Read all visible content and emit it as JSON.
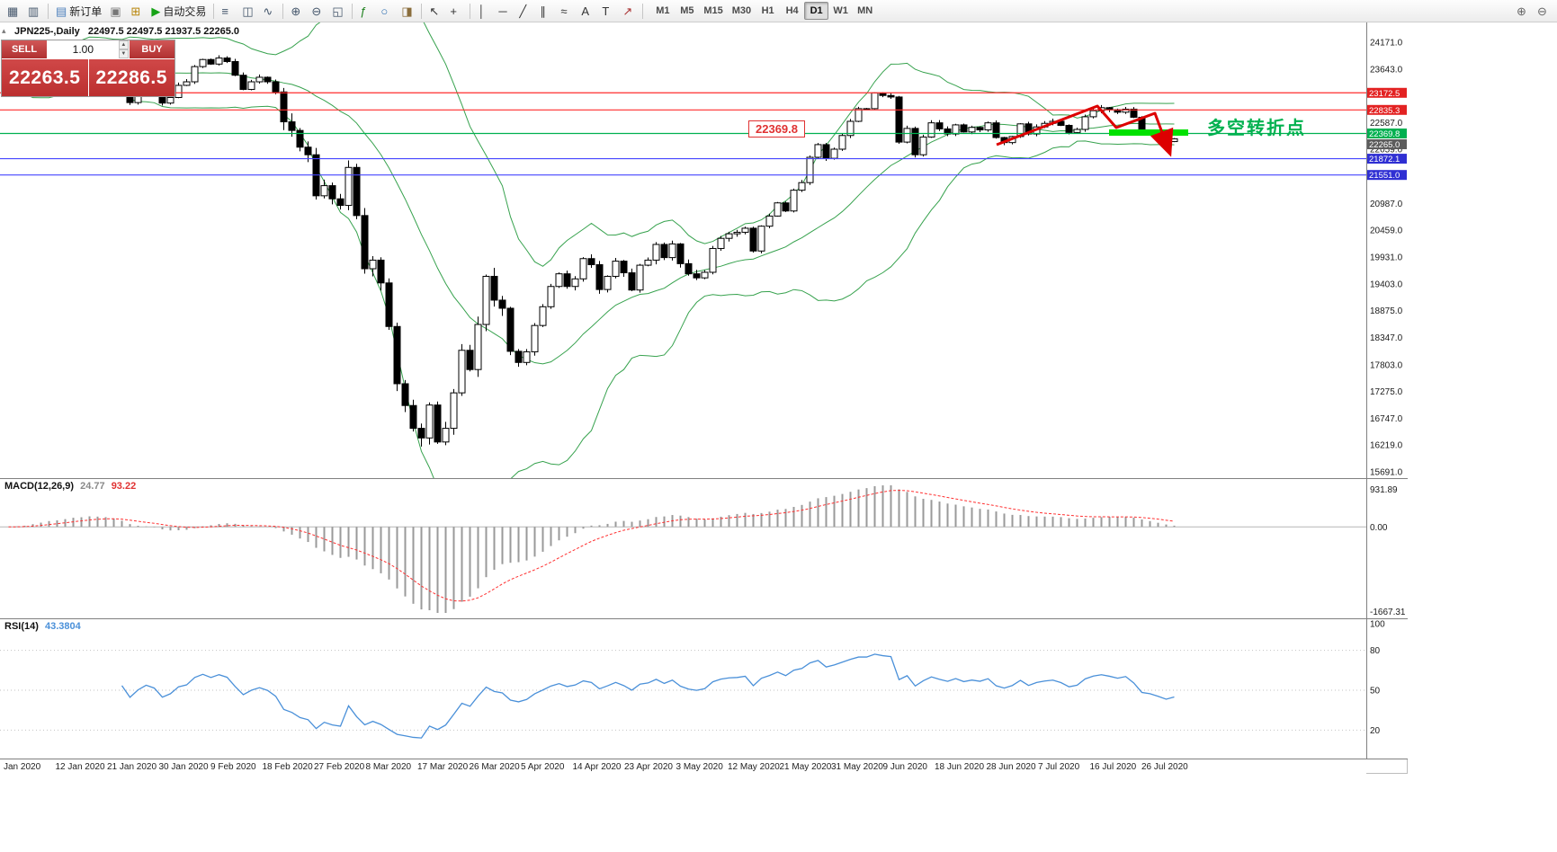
{
  "toolbar": {
    "buttons": [
      {
        "name": "new-chart",
        "glyph": "▦",
        "glyph_color": "#44566b"
      },
      {
        "name": "profiles",
        "glyph": "▥",
        "glyph_color": "#44566b"
      },
      {
        "name": "sep"
      },
      {
        "name": "new-order",
        "glyph": "▤",
        "glyph_color": "#4a7ebb",
        "label": "新订单"
      },
      {
        "name": "print",
        "glyph": "▣",
        "glyph_color": "#777777"
      },
      {
        "name": "market-watch",
        "glyph": "⊞",
        "glyph_color": "#b8860b"
      },
      {
        "name": "autotrading",
        "glyph": "▶",
        "glyph_color": "#17a317",
        "label": "自动交易"
      },
      {
        "name": "sep"
      },
      {
        "name": "bar-chart-mode",
        "glyph": "≡",
        "glyph_color": "#44566b"
      },
      {
        "name": "candlestick-mode",
        "glyph": "◫",
        "glyph_color": "#44566b"
      },
      {
        "name": "line-chart-mode",
        "glyph": "∿",
        "glyph_color": "#44566b"
      },
      {
        "name": "sep"
      },
      {
        "name": "zoom-in",
        "glyph": "⊕",
        "glyph_color": "#44566b"
      },
      {
        "name": "zoom-out",
        "glyph": "⊖",
        "glyph_color": "#44566b"
      },
      {
        "name": "tile-windows",
        "glyph": "◱",
        "glyph_color": "#44566b"
      },
      {
        "name": "sep"
      },
      {
        "name": "indicators",
        "glyph": "ƒ",
        "glyph_color": "#1a7f1a"
      },
      {
        "name": "periods",
        "glyph": "○",
        "glyph_color": "#2b6cb0"
      },
      {
        "name": "templates",
        "glyph": "◨",
        "glyph_color": "#8a6d3b"
      },
      {
        "name": "sep"
      },
      {
        "name": "cursor",
        "glyph": "↖",
        "glyph_color": "#333333"
      },
      {
        "name": "crosshair",
        "glyph": "+",
        "glyph_color": "#333333"
      },
      {
        "name": "sep"
      },
      {
        "name": "vertical-line",
        "glyph": "│",
        "glyph_color": "#333333"
      },
      {
        "name": "horizontal-line",
        "glyph": "─",
        "glyph_color": "#333333"
      },
      {
        "name": "trendline",
        "glyph": "╱",
        "glyph_color": "#333333"
      },
      {
        "name": "channel",
        "glyph": "∥",
        "glyph_color": "#333333"
      },
      {
        "name": "fibonacci",
        "glyph": "≈",
        "glyph_color": "#333333"
      },
      {
        "name": "text",
        "glyph": "A",
        "glyph_color": "#333333"
      },
      {
        "name": "text-label",
        "glyph": "T",
        "glyph_color": "#333333"
      },
      {
        "name": "arrows-tool",
        "glyph": "↗",
        "glyph_color": "#aa3333"
      },
      {
        "name": "sep"
      }
    ],
    "timeframes": [
      "M1",
      "M5",
      "M15",
      "M30",
      "H1",
      "H4",
      "D1",
      "W1",
      "MN"
    ],
    "active_timeframe": "D1",
    "right_buttons": [
      {
        "name": "magnify-increase",
        "glyph": "⊕",
        "glyph_color": "#666666"
      },
      {
        "name": "magnify-decrease",
        "glyph": "⊖",
        "glyph_color": "#666666"
      }
    ]
  },
  "chart": {
    "symbol_period": "JPN225-,Daily",
    "ohlc": "22497.5 22497.5 21937.5 22265.0"
  },
  "trade_panel": {
    "sell_label": "SELL",
    "buy_label": "BUY",
    "sell_price": "22263.5",
    "buy_price": "22286.5",
    "lots": "1.00"
  },
  "indicators": {
    "macd": {
      "name": "MACD(12,26,9)",
      "value_main": "24.77",
      "value_signal": "93.22",
      "axis": [
        "931.89",
        "0.00",
        "-1667.31"
      ]
    },
    "rsi": {
      "name": "RSI(14)",
      "value": "43.3804",
      "axis": [
        "100",
        "80",
        "50",
        "20"
      ]
    }
  },
  "annotations": {
    "level_label": "22369.8",
    "cn_note": "多空转折点"
  },
  "price_axis": {
    "labels": [
      "24171.0",
      "23643.0",
      "22587.0",
      "22059.0",
      "20987.0",
      "20459.0",
      "19931.0",
      "19403.0",
      "18875.0",
      "18347.0",
      "17803.0",
      "17275.0",
      "16747.0",
      "16219.0",
      "15691.0"
    ],
    "badges": [
      {
        "value": "23172.5",
        "color": "#e32222"
      },
      {
        "value": "22835.3",
        "color": "#e32222"
      },
      {
        "value": "22369.8",
        "color": "#00b050"
      },
      {
        "value": "22265.0",
        "color": "#5c5c5c"
      },
      {
        "value": "21872.1",
        "color": "#2f2fd3"
      },
      {
        "value": "21551.0",
        "color": "#2f2fd3"
      }
    ]
  },
  "date_axis": {
    "labels": [
      "Jan 2020",
      "12 Jan 2020",
      "21 Jan 2020",
      "30 Jan 2020",
      "9 Feb 2020",
      "18 Feb 2020",
      "27 Feb 2020",
      "8 Mar 2020",
      "17 Mar 2020",
      "26 Mar 2020",
      "5 Apr 2020",
      "14 Apr 2020",
      "23 Apr 2020",
      "3 May 2020",
      "12 May 2020",
      "21 May 2020",
      "31 May 2020",
      "9 Jun 2020",
      "18 Jun 2020",
      "28 Jun 2020",
      "7 Jul 2020",
      "16 Jul 2020",
      "26 Jul 2020"
    ]
  },
  "chart_data": {
    "type": "candlestick",
    "symbol": "JPN225-",
    "period": "Daily",
    "closes": [
      23210,
      23340,
      23410,
      23660,
      23740,
      23850,
      23740,
      23920,
      24040,
      23930,
      24080,
      23870,
      23820,
      23620,
      23350,
      22980,
      23215,
      23380,
      23290,
      22970,
      23080,
      23320,
      23390,
      23690,
      23830,
      23740,
      23860,
      23790,
      23520,
      23240,
      23390,
      23480,
      23390,
      23190,
      22600,
      22430,
      22100,
      21950,
      21140,
      21340,
      21080,
      20950,
      21700,
      20750,
      19700,
      19870,
      19420,
      18560,
      17430,
      17000,
      16550,
      16360,
      17010,
      16280,
      16550,
      17250,
      18090,
      17710,
      18600,
      19550,
      19080,
      18920,
      18070,
      17850,
      18060,
      18580,
      18950,
      19350,
      19600,
      19350,
      19500,
      19900,
      19780,
      19290,
      19550,
      19850,
      19620,
      19280,
      19770,
      19870,
      20180,
      19920,
      20190,
      19800,
      19600,
      19520,
      19630,
      20100,
      20300,
      20390,
      20420,
      20500,
      20050,
      20540,
      20740,
      21000,
      20840,
      21250,
      21400,
      21900,
      22150,
      21880,
      22060,
      22330,
      22610,
      22860,
      22860,
      23170,
      23120,
      23090,
      22200,
      22470,
      21950,
      22300,
      22580,
      22460,
      22360,
      22540,
      22400,
      22490,
      22440,
      22580,
      22290,
      22190,
      22310,
      22560,
      22360,
      22500,
      22570,
      22610,
      22530,
      22390,
      22450,
      22700,
      22820,
      22880,
      22840,
      22790,
      22850,
      22690,
      22420,
      22380,
      22300,
      22210,
      22265
    ],
    "bollinger": {
      "period": 20,
      "deviation": 2,
      "color": "#37a24e"
    },
    "horizontal_lines": [
      {
        "price": 23172.5,
        "color": "#ff2d2d"
      },
      {
        "price": 22835.3,
        "color": "#ff2d2d"
      },
      {
        "price": 22369.8,
        "color": "#00b050"
      },
      {
        "price": 21872.1,
        "color": "#4545ff"
      },
      {
        "price": 21551.0,
        "color": "#4545ff"
      }
    ],
    "annotations": {
      "trend_path": [
        [
          1108,
          136
        ],
        [
          1220,
          93
        ],
        [
          1241,
          117
        ],
        [
          1284,
          101
        ],
        [
          1300,
          144
        ]
      ],
      "trend_color": "#dd0000",
      "support_zone": {
        "x": 1233,
        "y": 119,
        "w": 88,
        "h": 7,
        "color": "#00e100"
      }
    },
    "ylim": [
      15400,
      24450
    ]
  }
}
